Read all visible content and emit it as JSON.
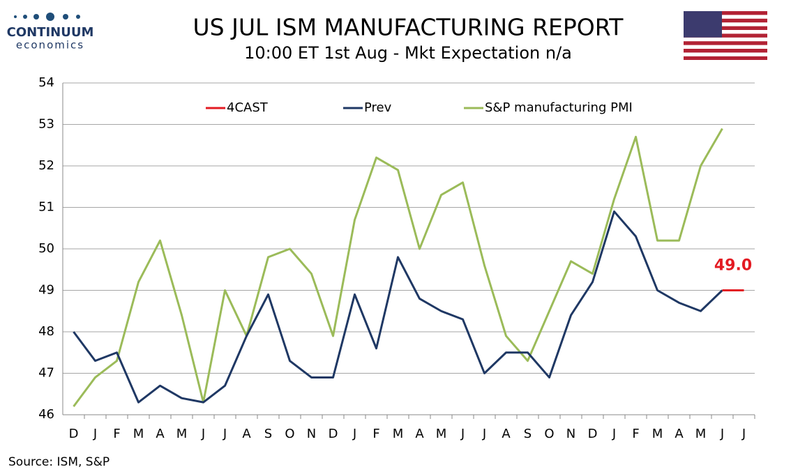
{
  "brand": {
    "name": "CONTINUUM",
    "tagline": "economics"
  },
  "source": "Source: ISM, S&P",
  "chart_data": {
    "type": "line",
    "title": "US JUL ISM MANUFACTURING REPORT",
    "subtitle": "10:00 ET 1st Aug - Mkt Expectation n/a",
    "categories": [
      "D",
      "J",
      "F",
      "M",
      "A",
      "M",
      "J",
      "J",
      "A",
      "S",
      "O",
      "N",
      "D",
      "J",
      "F",
      "M",
      "A",
      "M",
      "J",
      "J",
      "A",
      "S",
      "O",
      "N",
      "D",
      "J",
      "F",
      "M",
      "A",
      "M",
      "J",
      "J"
    ],
    "ylim": [
      46,
      54
    ],
    "yticks": [
      46,
      47,
      48,
      49,
      50,
      51,
      52,
      53,
      54
    ],
    "grid": true,
    "legend": "top",
    "series": [
      {
        "name": "4CAST",
        "color": "#e31b23",
        "values": [
          null,
          null,
          null,
          null,
          null,
          null,
          null,
          null,
          null,
          null,
          null,
          null,
          null,
          null,
          null,
          null,
          null,
          null,
          null,
          null,
          null,
          null,
          null,
          null,
          null,
          null,
          null,
          null,
          null,
          null,
          49.0,
          49.0
        ],
        "value_labels": [
          null,
          null,
          null,
          null,
          null,
          null,
          null,
          null,
          null,
          null,
          null,
          null,
          null,
          null,
          null,
          null,
          null,
          null,
          null,
          null,
          null,
          null,
          null,
          null,
          null,
          null,
          null,
          null,
          null,
          null,
          null,
          "49.0"
        ]
      },
      {
        "name": "Prev",
        "color": "#1f3864",
        "values": [
          48.0,
          47.3,
          47.5,
          46.3,
          46.7,
          46.4,
          46.3,
          46.7,
          47.9,
          48.9,
          47.3,
          46.9,
          46.9,
          48.9,
          47.6,
          49.8,
          48.8,
          48.5,
          48.3,
          47.0,
          47.5,
          47.5,
          46.9,
          48.4,
          49.2,
          50.9,
          50.3,
          49.0,
          48.7,
          48.5,
          49.0,
          null
        ]
      },
      {
        "name": "S&P manufacturing PMI",
        "color": "#9bbb59",
        "values": [
          46.2,
          46.9,
          47.3,
          49.2,
          50.2,
          48.4,
          46.3,
          49.0,
          47.9,
          49.8,
          50.0,
          49.4,
          47.9,
          50.7,
          52.2,
          51.9,
          50.0,
          51.3,
          51.6,
          49.6,
          47.9,
          47.3,
          48.5,
          49.7,
          49.4,
          51.2,
          52.7,
          50.2,
          50.2,
          52.0,
          52.9,
          null
        ]
      }
    ]
  }
}
